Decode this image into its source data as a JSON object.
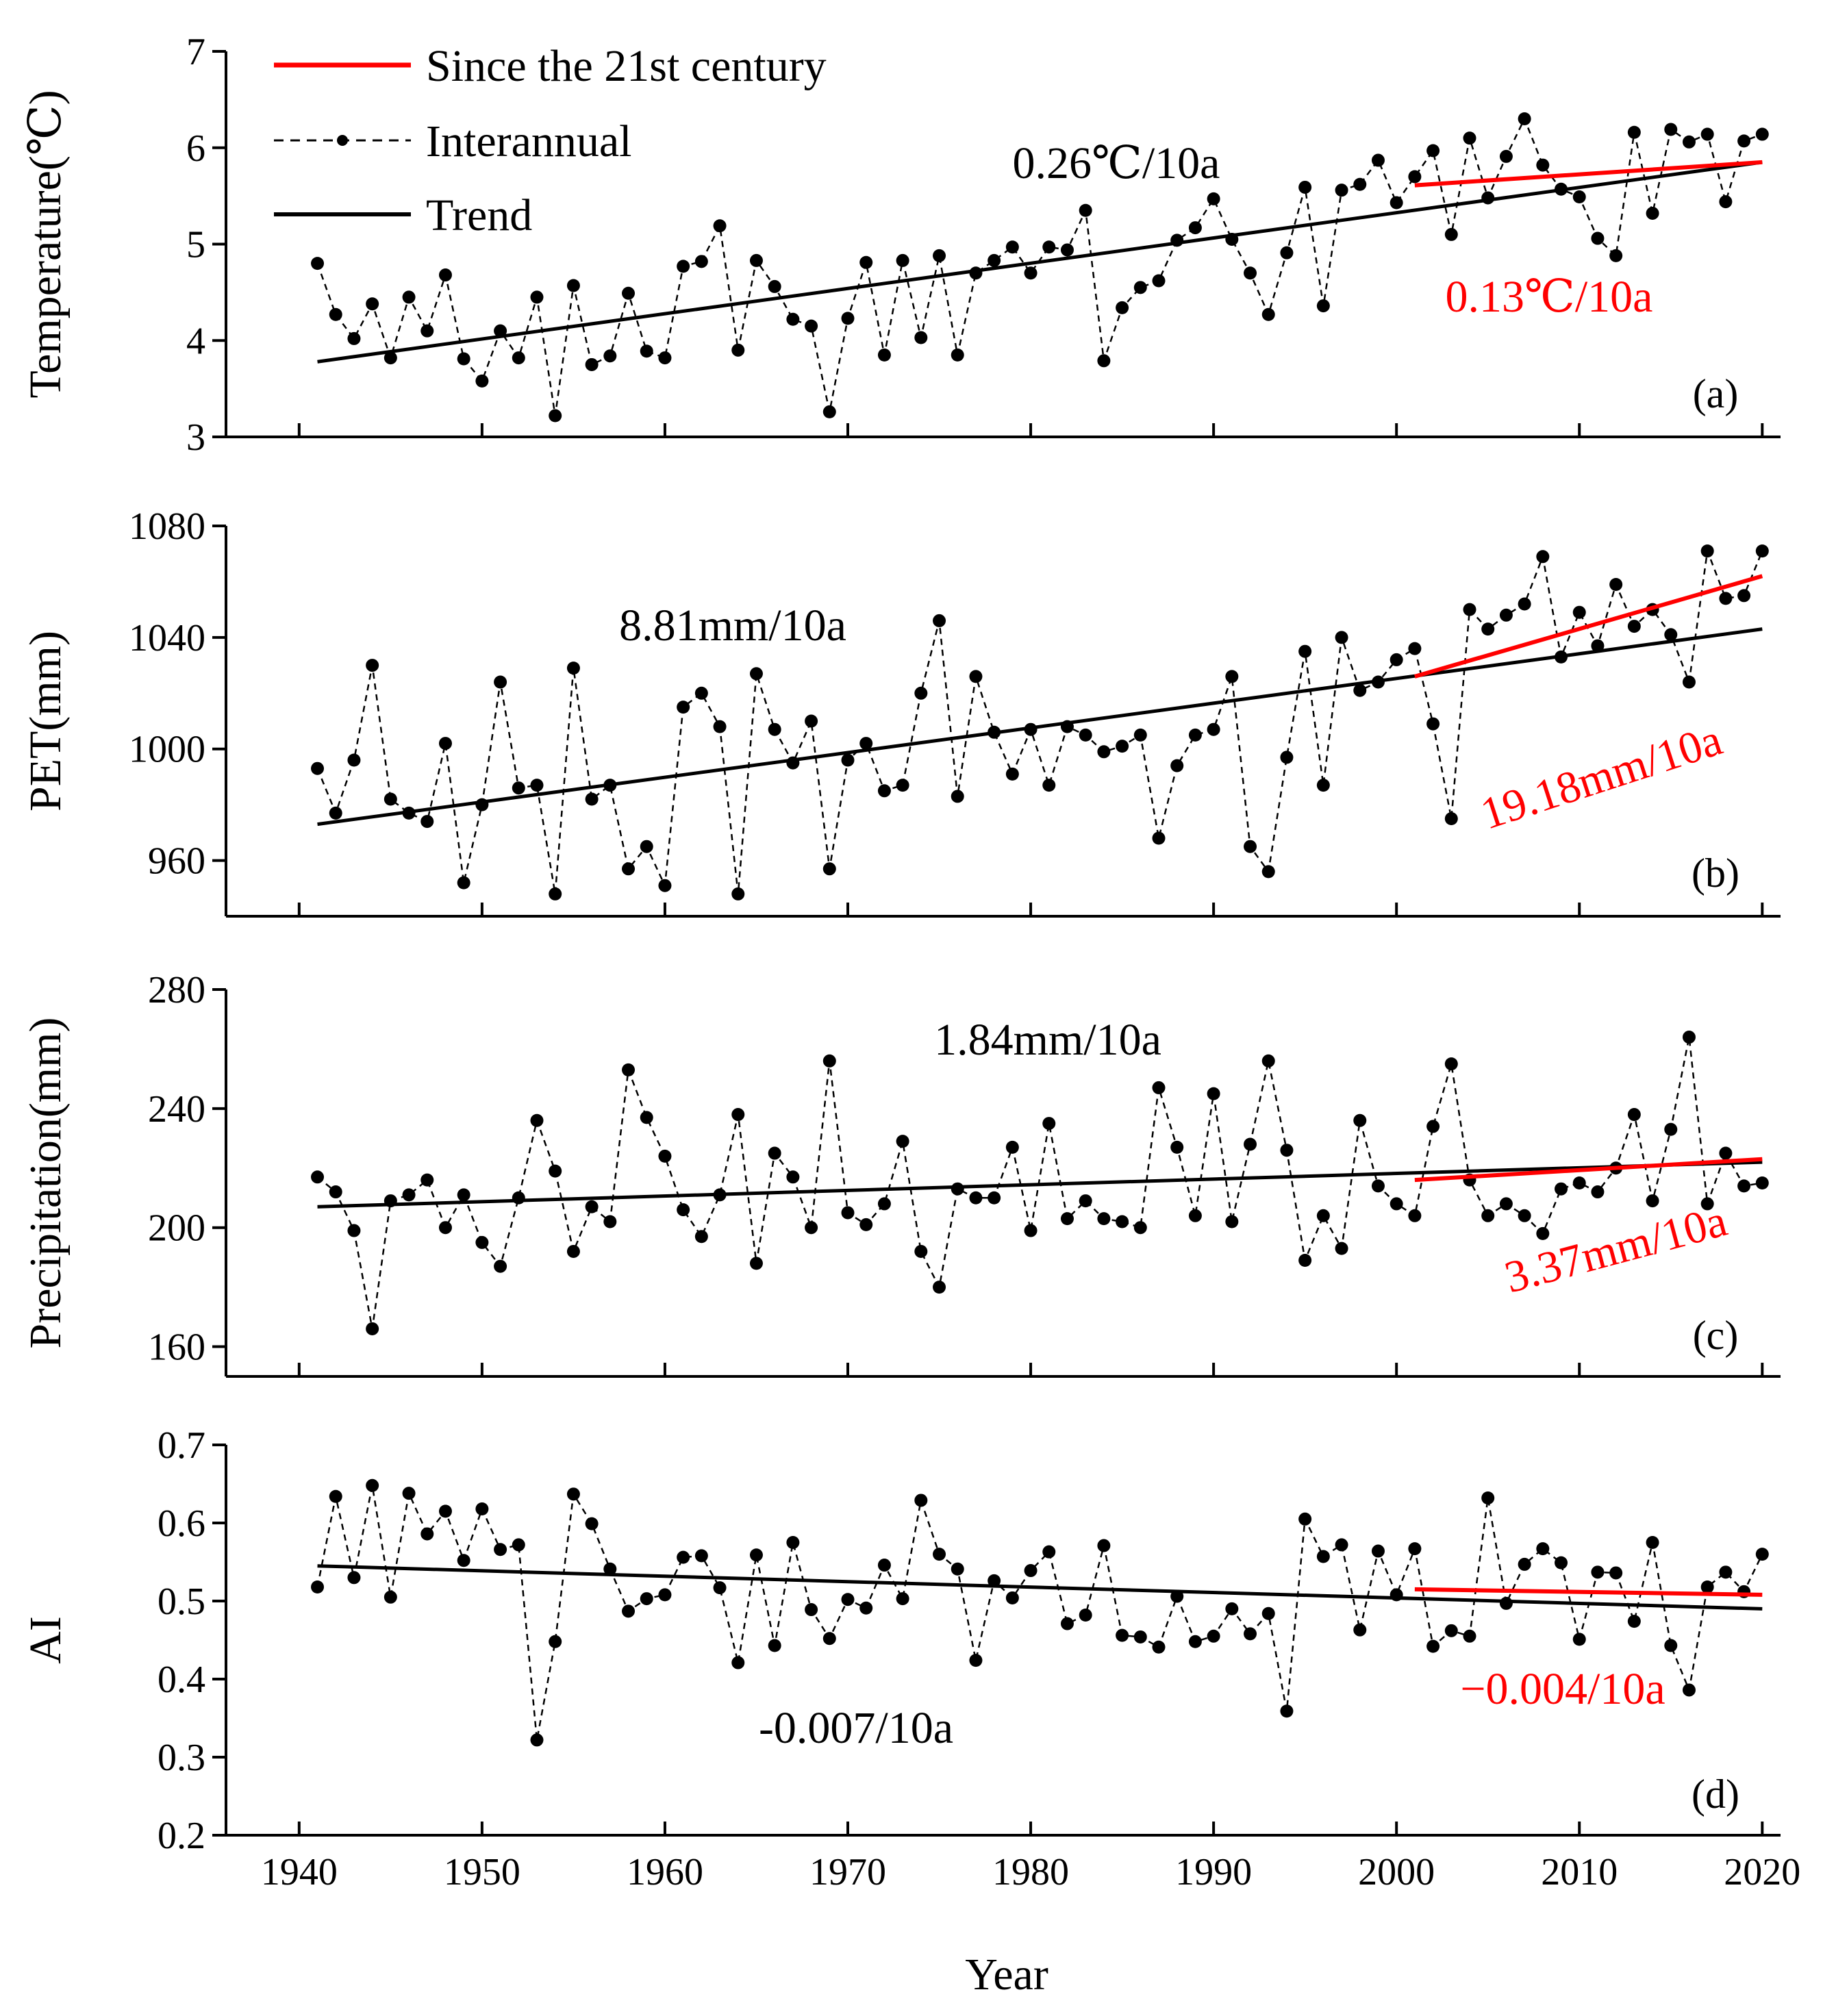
{
  "chart_data": {
    "type": "line",
    "years": [
      1941,
      1942,
      1943,
      1944,
      1945,
      1946,
      1947,
      1948,
      1949,
      1950,
      1951,
      1952,
      1953,
      1954,
      1955,
      1956,
      1957,
      1958,
      1959,
      1960,
      1961,
      1962,
      1963,
      1964,
      1965,
      1966,
      1967,
      1968,
      1969,
      1970,
      1971,
      1972,
      1973,
      1974,
      1975,
      1976,
      1977,
      1978,
      1979,
      1980,
      1981,
      1982,
      1983,
      1984,
      1985,
      1986,
      1987,
      1988,
      1989,
      1990,
      1991,
      1992,
      1993,
      1994,
      1995,
      1996,
      1997,
      1998,
      1999,
      2000,
      2001,
      2002,
      2003,
      2004,
      2005,
      2006,
      2007,
      2008,
      2009,
      2010,
      2011,
      2012,
      2013,
      2014,
      2015,
      2016,
      2017,
      2018,
      2019,
      2020
    ],
    "xlabel": "Year",
    "xlim": [
      1936,
      2021
    ],
    "xticks": [
      1940,
      1950,
      1960,
      1970,
      1980,
      1990,
      2000,
      2010,
      2020
    ],
    "legend": {
      "position": "top-left",
      "entries": [
        "Since the 21st century",
        "Interannual",
        "Trend"
      ]
    },
    "colors": {
      "interannual": "#000000",
      "trend": "#000000",
      "recent": "#ff0000"
    },
    "panels": [
      {
        "tag": "(a)",
        "ylabel": "Temperature(℃)",
        "ylim": [
          3,
          7
        ],
        "yticks": [
          3,
          4,
          5,
          6,
          7
        ],
        "values": [
          4.8,
          4.27,
          4.02,
          4.38,
          3.82,
          4.45,
          4.1,
          4.68,
          3.81,
          3.58,
          4.1,
          3.82,
          4.45,
          3.22,
          4.57,
          3.75,
          3.84,
          4.49,
          3.89,
          3.82,
          4.77,
          4.82,
          5.19,
          3.9,
          4.83,
          4.56,
          4.22,
          4.15,
          3.26,
          4.23,
          4.81,
          3.85,
          4.83,
          4.03,
          4.88,
          3.85,
          4.7,
          4.83,
          4.97,
          4.7,
          4.97,
          4.94,
          5.35,
          3.79,
          4.34,
          4.55,
          4.62,
          5.04,
          5.17,
          5.47,
          5.05,
          4.7,
          4.27,
          4.91,
          5.59,
          4.36,
          5.56,
          5.62,
          5.87,
          5.43,
          5.7,
          5.97,
          5.1,
          6.1,
          5.48,
          5.91,
          6.3,
          5.82,
          5.57,
          5.49,
          5.06,
          4.88,
          6.16,
          5.32,
          6.19,
          6.06,
          6.14,
          5.44,
          6.07,
          6.14
        ],
        "trend": {
          "start": [
            1941,
            3.78
          ],
          "end": [
            2020,
            5.85
          ],
          "label": "0.26℃/10a"
        },
        "recent_trend": {
          "start": [
            2001,
            5.61
          ],
          "end": [
            2020,
            5.85
          ],
          "label": "0.13℃/10a"
        }
      },
      {
        "tag": "(b)",
        "ylabel": "PET(mm)",
        "ylim": [
          940,
          1080
        ],
        "yticks": [
          960,
          1000,
          1040,
          1080
        ],
        "values": [
          993,
          977,
          996,
          1030,
          982,
          977,
          974,
          1002,
          952,
          980,
          1024,
          986,
          987,
          948,
          1029,
          982,
          987,
          957,
          965,
          951,
          1015,
          1020,
          1008,
          948,
          1027,
          1007,
          995,
          1010,
          957,
          996,
          1002,
          985,
          987,
          1020,
          1046,
          983,
          1026,
          1006,
          991,
          1007,
          987,
          1008,
          1005,
          999,
          1001,
          1005,
          968,
          994,
          1005,
          1007,
          1026,
          965,
          956,
          997,
          1035,
          987,
          1040,
          1021,
          1024,
          1032,
          1036,
          1009,
          975,
          1050,
          1043,
          1048,
          1052,
          1069,
          1033,
          1049,
          1037,
          1059,
          1044,
          1050,
          1041,
          1024,
          1071,
          1054,
          1055,
          1071
        ],
        "trend": {
          "start": [
            1941,
            973
          ],
          "end": [
            2020,
            1043
          ],
          "label": "8.81mm/10a"
        },
        "recent_trend": {
          "start": [
            2001,
            1026
          ],
          "end": [
            2020,
            1062
          ],
          "label": "19.18mm/10a"
        }
      },
      {
        "tag": "(c)",
        "ylabel": "Precipitation(mm)",
        "ylim": [
          150,
          280
        ],
        "yticks": [
          160,
          200,
          240,
          280
        ],
        "values": [
          217,
          212,
          199,
          166,
          209,
          211,
          216,
          200,
          211,
          195,
          187,
          210,
          236,
          219,
          192,
          207,
          202,
          253,
          237,
          224,
          206,
          197,
          211,
          238,
          188,
          225,
          217,
          200,
          256,
          205,
          201,
          208,
          229,
          192,
          180,
          213,
          210,
          210,
          227,
          199,
          235,
          203,
          209,
          203,
          202,
          200,
          247,
          227,
          204,
          245,
          202,
          228,
          256,
          226,
          189,
          204,
          193,
          236,
          214,
          208,
          204,
          234,
          255,
          216,
          204,
          208,
          204,
          198,
          213,
          215,
          212,
          220,
          238,
          209,
          233,
          264,
          208,
          225,
          214,
          215
        ],
        "trend": {
          "start": [
            1941,
            207
          ],
          "end": [
            2020,
            222
          ],
          "label": "1.84mm/10a"
        },
        "recent_trend": {
          "start": [
            2001,
            216
          ],
          "end": [
            2020,
            223
          ],
          "label": "3.37mm/10a"
        }
      },
      {
        "tag": "(d)",
        "ylabel": "AI",
        "ylim": [
          0.2,
          0.7
        ],
        "yticks": [
          0.2,
          0.3,
          0.4,
          0.5,
          0.6,
          0.7
        ],
        "values": [
          0.518,
          0.634,
          0.53,
          0.648,
          0.505,
          0.638,
          0.586,
          0.615,
          0.552,
          0.618,
          0.566,
          0.572,
          0.322,
          0.448,
          0.637,
          0.599,
          0.541,
          0.487,
          0.503,
          0.508,
          0.556,
          0.558,
          0.517,
          0.421,
          0.559,
          0.443,
          0.575,
          0.489,
          0.452,
          0.502,
          0.491,
          0.546,
          0.503,
          0.629,
          0.56,
          0.541,
          0.424,
          0.526,
          0.504,
          0.539,
          0.563,
          0.471,
          0.482,
          0.571,
          0.456,
          0.454,
          0.441,
          0.506,
          0.448,
          0.455,
          0.49,
          0.458,
          0.484,
          0.359,
          0.605,
          0.557,
          0.572,
          0.463,
          0.564,
          0.508,
          0.567,
          0.442,
          0.462,
          0.455,
          0.632,
          0.497,
          0.547,
          0.567,
          0.549,
          0.451,
          0.537,
          0.536,
          0.474,
          0.575,
          0.443,
          0.386,
          0.518,
          0.537,
          0.512,
          0.56
        ],
        "trend": {
          "start": [
            1941,
            0.545
          ],
          "end": [
            2020,
            0.49
          ],
          "label": "-0.007/10a"
        },
        "recent_trend": {
          "start": [
            2001,
            0.515
          ],
          "end": [
            2020,
            0.508
          ],
          "label": "−0.004/10a"
        }
      }
    ]
  }
}
